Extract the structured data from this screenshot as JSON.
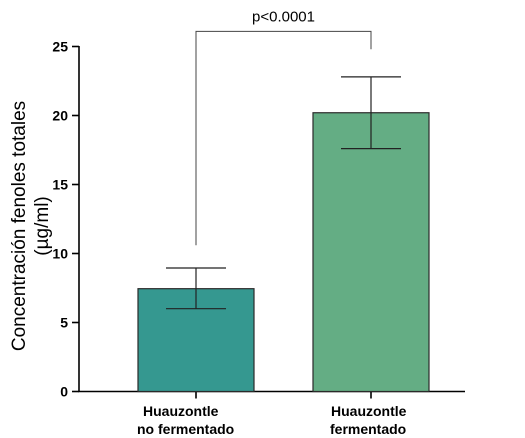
{
  "chart_data": {
    "type": "bar",
    "title": "",
    "xlabel": "",
    "ylabel_lines": [
      "Concentración fenoles totales",
      "(µg/ml)"
    ],
    "ylim": [
      0,
      25
    ],
    "yticks": [
      0,
      5,
      10,
      15,
      20,
      25
    ],
    "grid": false,
    "categories": [
      [
        "Huauzontle",
        "no fermentado"
      ],
      [
        "Huauzontle",
        "fermentado"
      ]
    ],
    "values": [
      7.45,
      20.2
    ],
    "error_low": [
      6.0,
      17.6
    ],
    "error_high": [
      8.95,
      22.8
    ],
    "colors": [
      "#359890",
      "#64ad84"
    ],
    "significance": {
      "label": "p<0.0001",
      "left_from": 10.6,
      "right_from": 24.8,
      "top": 26.1
    }
  }
}
